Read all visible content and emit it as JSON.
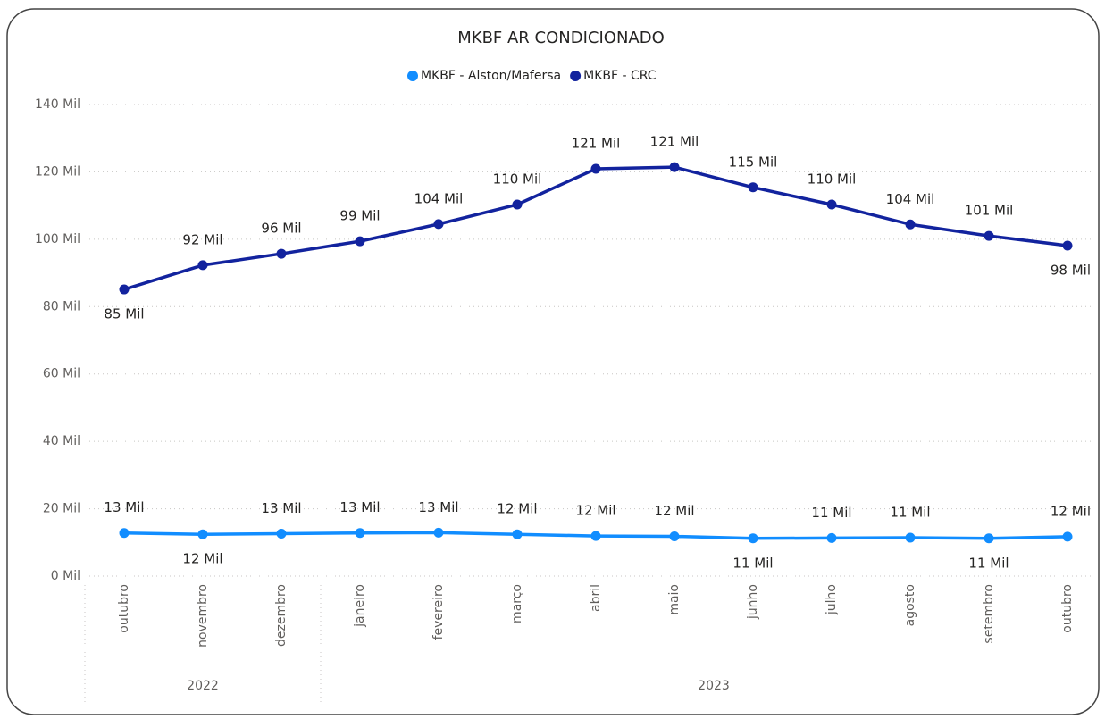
{
  "chart_data": {
    "type": "line",
    "title": "MKBF AR CONDICIONADO",
    "categories": [
      "outubro",
      "novembro",
      "dezembro",
      "janeiro",
      "fevereiro",
      "março",
      "abril",
      "maio",
      "junho",
      "julho",
      "agosto",
      "setembro",
      "outubro"
    ],
    "x_groups": [
      {
        "label": "2022",
        "span": 3
      },
      {
        "label": "2023",
        "span": 10
      }
    ],
    "series": [
      {
        "name": "MKBF - Alston/Mafersa",
        "color": "#118DFF",
        "values": [
          12.8,
          12.4,
          12.6,
          12.8,
          12.9,
          12.4,
          11.9,
          11.8,
          11.2,
          11.3,
          11.4,
          11.2,
          11.7
        ],
        "value_labels": [
          "13 Mil",
          "12 Mil",
          "13 Mil",
          "13 Mil",
          "13 Mil",
          "12 Mil",
          "12 Mil",
          "12 Mil",
          "11 Mil",
          "11 Mil",
          "11 Mil",
          "11 Mil",
          "12 Mil"
        ]
      },
      {
        "name": "MKBF - CRC",
        "color": "#12239E",
        "values": [
          85.1,
          92.3,
          95.7,
          99.4,
          104.5,
          110.3,
          120.9,
          121.4,
          115.4,
          110.3,
          104.4,
          101.0,
          98.1
        ],
        "value_labels": [
          "85 Mil",
          "92 Mil",
          "96 Mil",
          "99 Mil",
          "104 Mil",
          "110 Mil",
          "121 Mil",
          "121 Mil",
          "115 Mil",
          "110 Mil",
          "104 Mil",
          "101 Mil",
          "98 Mil"
        ]
      }
    ],
    "ylim": [
      0,
      140
    ],
    "yticks": [
      {
        "value": 0,
        "label": "0 Mil"
      },
      {
        "value": 20,
        "label": "20 Mil"
      },
      {
        "value": 40,
        "label": "40 Mil"
      },
      {
        "value": 60,
        "label": "60 Mil"
      },
      {
        "value": 80,
        "label": "80 Mil"
      },
      {
        "value": 100,
        "label": "100 Mil"
      },
      {
        "value": 120,
        "label": "120 Mil"
      },
      {
        "value": 140,
        "label": "140 Mil"
      }
    ],
    "grid": true,
    "legend": "top"
  }
}
